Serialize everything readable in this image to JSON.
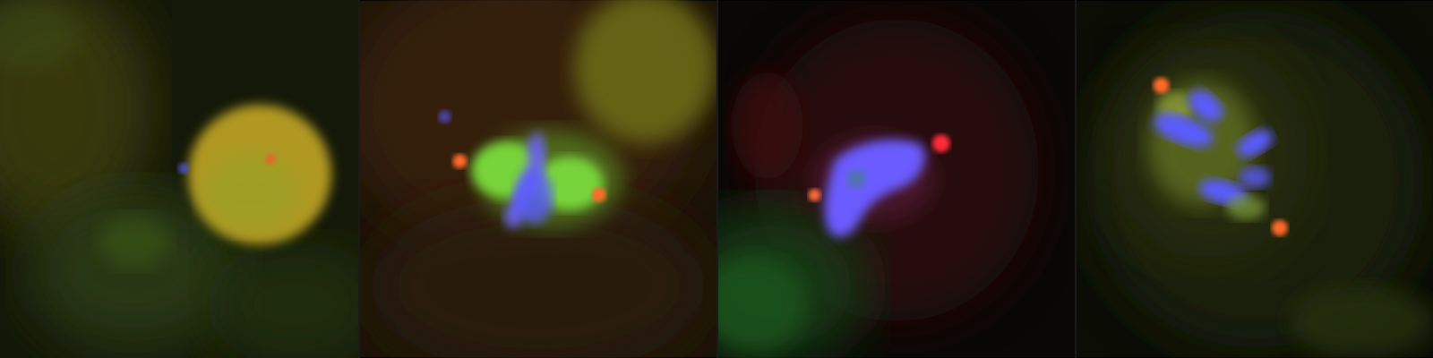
{
  "figure": {
    "panels": [
      {
        "id": "panel-1",
        "stage": "interphase"
      },
      {
        "id": "panel-2",
        "stage": "prometaphase"
      },
      {
        "id": "panel-3",
        "stage": "prometaphase"
      },
      {
        "id": "panel-4",
        "stage": "metaphase"
      }
    ],
    "channels": {
      "dna": "#5a5cff",
      "centrosome": "#ff4a2a",
      "microtubule": "#7fe040",
      "cytoplasm": "#b89a20"
    }
  }
}
